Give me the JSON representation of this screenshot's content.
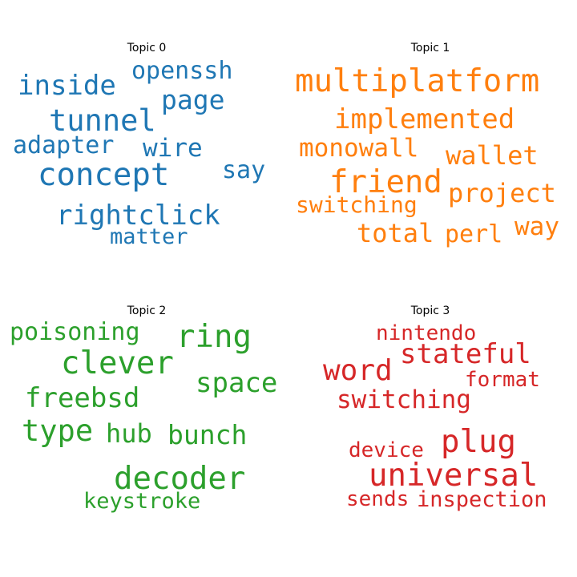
{
  "chart_data": {
    "type": "wordcloud",
    "panels": [
      {
        "title": "Topic 0",
        "color": "#1f77b4",
        "words": [
          "openssh",
          "inside",
          "page",
          "tunnel",
          "adapter",
          "wire",
          "say",
          "concept",
          "rightclick",
          "matter"
        ]
      },
      {
        "title": "Topic 1",
        "color": "#ff7f0e",
        "words": [
          "multiplatform",
          "implemented",
          "monowall",
          "wallet",
          "friend",
          "project",
          "switching",
          "way",
          "total",
          "perl"
        ]
      },
      {
        "title": "Topic 2",
        "color": "#2ca02c",
        "words": [
          "poisoning",
          "ring",
          "clever",
          "space",
          "freebsd",
          "type",
          "hub",
          "bunch",
          "decoder",
          "keystroke"
        ]
      },
      {
        "title": "Topic 3",
        "color": "#d62728",
        "words": [
          "nintendo",
          "stateful",
          "word",
          "format",
          "switching",
          "plug",
          "device",
          "universal",
          "sends",
          "inspection"
        ]
      }
    ]
  }
}
